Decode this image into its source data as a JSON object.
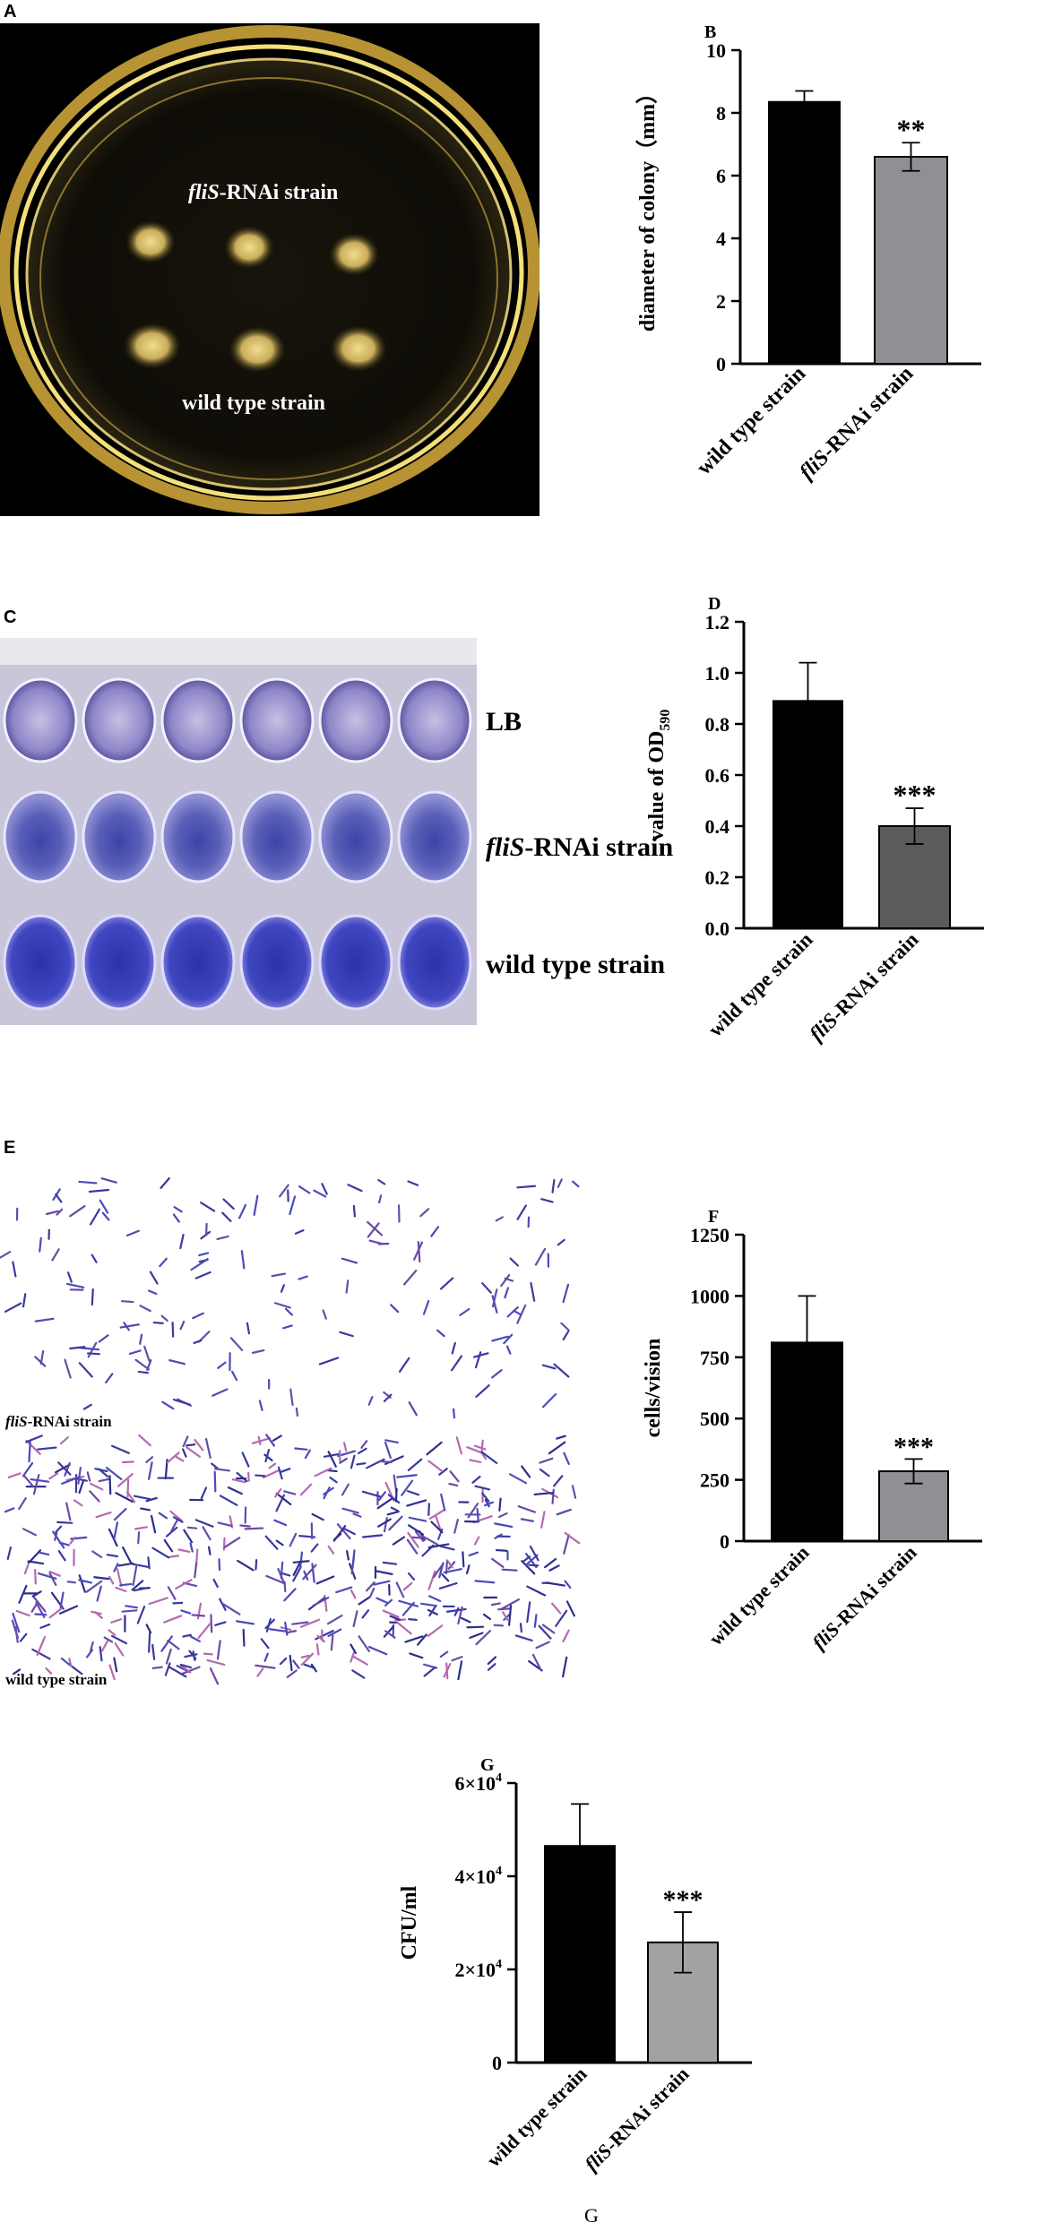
{
  "panels": {
    "A": {
      "letter": "A",
      "top_label_italic": "fliS",
      "top_label_rest": "-RNAi strain",
      "bottom_label": "wild type strain"
    },
    "C": {
      "letter": "C",
      "row_labels": {
        "lb": "LB",
        "flis_italic": "fliS",
        "flis_rest": "-RNAi strain",
        "wild": "wild type strain"
      }
    },
    "E": {
      "letter": "E",
      "top_label_italic": "fliS",
      "top_label_rest": "-RNAi strain",
      "bottom_label": "wild type strain"
    }
  },
  "footer": {
    "label": "G"
  },
  "colors": {
    "dark_bar": "#000000",
    "gray_bar": "#8f9093",
    "dark_gray_bar": "#5a5c5b",
    "light_gray_bar": "#a0a2a4",
    "crystal_violet": "#3b3fa6",
    "agar_glow": "#e0c870"
  },
  "chart_data": [
    {
      "panel": "B",
      "type": "bar",
      "categories": [
        "wild  type strain",
        "fliS-RNAi strain"
      ],
      "values": [
        8.35,
        6.6
      ],
      "errors": [
        0.35,
        0.45
      ],
      "bar_colors": [
        "#000000",
        "#8f9093"
      ],
      "significance": [
        "",
        "**"
      ],
      "ylabel": "diameter of colony（mm）",
      "ylim": [
        0,
        10
      ],
      "yticks": [
        "0",
        "2",
        "4",
        "6",
        "8",
        "10"
      ],
      "ytick_values": [
        0,
        2,
        4,
        6,
        8,
        10
      ]
    },
    {
      "panel": "D",
      "type": "bar",
      "categories": [
        "wild type strain",
        "fliS-RNAi strain"
      ],
      "values": [
        0.89,
        0.4
      ],
      "errors": [
        0.15,
        0.07
      ],
      "bar_colors": [
        "#000000",
        "#5a5c5b"
      ],
      "significance": [
        "",
        "***"
      ],
      "ylabel": "value of OD",
      "ylabel_sub": "590",
      "ylim": [
        0,
        1.2
      ],
      "yticks": [
        "0.0",
        "0.2",
        "0.4",
        "0.6",
        "0.8",
        "1.0",
        "1.2"
      ],
      "ytick_values": [
        0,
        0.2,
        0.4,
        0.6,
        0.8,
        1.0,
        1.2
      ]
    },
    {
      "panel": "F",
      "type": "bar",
      "categories": [
        "wild  type strain",
        "fliS-RNAi strain"
      ],
      "values": [
        810,
        285
      ],
      "errors": [
        190,
        50
      ],
      "bar_colors": [
        "#000000",
        "#8f9093"
      ],
      "significance": [
        "",
        "***"
      ],
      "ylabel": "cells/vision",
      "ylim": [
        0,
        1250
      ],
      "yticks": [
        "0",
        "250",
        "500",
        "750",
        "1000",
        "1250"
      ],
      "ytick_values": [
        0,
        250,
        500,
        750,
        1000,
        1250
      ]
    },
    {
      "panel": "G",
      "type": "bar",
      "categories": [
        "wild type strain",
        "fliS-RNAi strain"
      ],
      "values": [
        46500,
        25800
      ],
      "errors": [
        9000,
        6500
      ],
      "bar_colors": [
        "#000000",
        "#a0a2a4"
      ],
      "significance": [
        "",
        "***"
      ],
      "ylabel": "CFU/ml",
      "ylim": [
        0,
        60000
      ],
      "yticks": [
        "0",
        "2×10",
        "4×10",
        "6×10"
      ],
      "ytick_sups": [
        "",
        "4",
        "4",
        "4"
      ],
      "ytick_values": [
        0,
        20000,
        40000,
        60000
      ]
    }
  ]
}
